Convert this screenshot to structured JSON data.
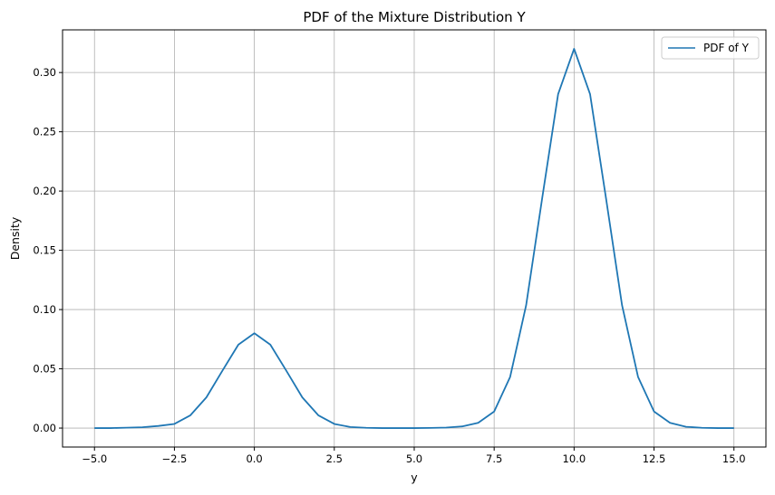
{
  "chart_data": {
    "type": "line",
    "title": "PDF of the Mixture Distribution Y",
    "xlabel": "y",
    "ylabel": "Density",
    "xlim": [
      -5.999,
      16.0
    ],
    "ylim": [
      -0.016,
      0.336
    ],
    "xticks": [
      -5.0,
      -2.5,
      0.0,
      2.5,
      5.0,
      7.5,
      10.0,
      12.5,
      15.0
    ],
    "xtick_labels": [
      "−5.0",
      "−2.5",
      "0.0",
      "2.5",
      "5.0",
      "7.5",
      "10.0",
      "12.5",
      "15.0"
    ],
    "yticks": [
      0.0,
      0.05,
      0.1,
      0.15,
      0.2,
      0.25,
      0.3
    ],
    "ytick_labels": [
      "0.00",
      "0.05",
      "0.10",
      "0.15",
      "0.20",
      "0.25",
      "0.30"
    ],
    "grid": true,
    "legend_position": "top-right",
    "series": [
      {
        "name": "PDF of Y",
        "color": "#1f77b4",
        "x": [
          -5.0,
          -4.5,
          -4.0,
          -3.5,
          -3.0,
          -2.5,
          -2.0,
          -1.5,
          -1.0,
          -0.5,
          0.0,
          0.5,
          1.0,
          1.5,
          2.0,
          2.5,
          3.0,
          3.5,
          4.0,
          4.5,
          5.0,
          5.5,
          6.0,
          6.5,
          7.0,
          7.5,
          8.0,
          8.5,
          9.0,
          9.5,
          10.0,
          10.5,
          11.0,
          11.5,
          12.0,
          12.5,
          13.0,
          13.5,
          14.0,
          14.5,
          15.0
        ],
        "y": [
          0.0,
          0.0,
          0.0003,
          0.0007,
          0.0018,
          0.0035,
          0.0108,
          0.0259,
          0.0484,
          0.0704,
          0.08,
          0.0704,
          0.0484,
          0.0259,
          0.0108,
          0.0035,
          0.0009,
          0.0002,
          0.0,
          0.0,
          0.0,
          0.0001,
          0.0004,
          0.0014,
          0.0044,
          0.014,
          0.0432,
          0.1036,
          0.1936,
          0.2817,
          0.32,
          0.2817,
          0.1936,
          0.1036,
          0.0432,
          0.014,
          0.0044,
          0.0011,
          0.0002,
          0.0,
          0.0
        ]
      }
    ]
  }
}
